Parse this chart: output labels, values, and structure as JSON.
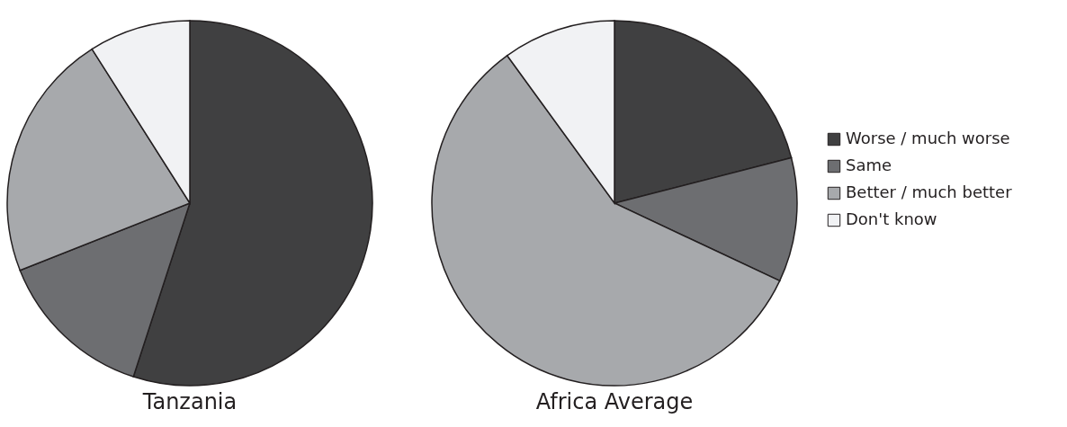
{
  "chart_data": [
    {
      "type": "pie",
      "title": "Tanzania",
      "categories": [
        null,
        null,
        null,
        null
      ],
      "values": [
        55,
        14,
        22,
        9
      ],
      "colors": [
        "#404041",
        "#6d6e71",
        "#a7a9ac",
        "#f1f2f4"
      ],
      "legend": false
    },
    {
      "type": "pie",
      "title": "Africa Average",
      "categories": [
        "Worse / much worse",
        "Same",
        "Better / much better",
        "Don't know"
      ],
      "values": [
        21,
        11,
        58,
        10
      ],
      "colors": [
        "#404041",
        "#6d6e71",
        "#a7a9ac",
        "#f1f2f4"
      ],
      "legend": "right"
    }
  ]
}
